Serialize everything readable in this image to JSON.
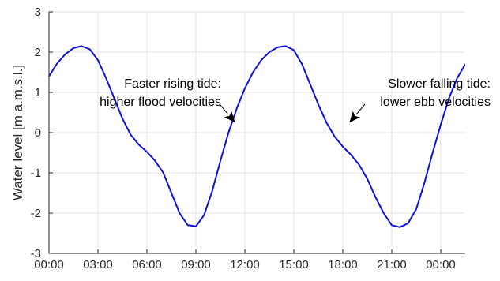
{
  "chart_data": {
    "type": "line",
    "title": "",
    "xlabel": "",
    "ylabel": "Water level [m a.m.s.l.]",
    "xlim": [
      0,
      25.5
    ],
    "ylim": [
      -3,
      3
    ],
    "grid": true,
    "x_ticks": [
      0,
      3,
      6,
      9,
      12,
      15,
      18,
      21,
      24
    ],
    "x_tick_labels": [
      "00:00",
      "03:00",
      "06:00",
      "09:00",
      "12:00",
      "15:00",
      "18:00",
      "21:00",
      "00:00"
    ],
    "y_ticks": [
      -3,
      -2,
      -1,
      0,
      1,
      2,
      3
    ],
    "y_tick_labels": [
      "-3",
      "-2",
      "-1",
      "0",
      "1",
      "2",
      "3"
    ],
    "line_color": "#1010e0",
    "series": [
      {
        "x": [
          0,
          0.5,
          1,
          1.5,
          2,
          2.5,
          3,
          3.5,
          4,
          4.5,
          5,
          5.5,
          6,
          6.5,
          7,
          7.5,
          8,
          8.5,
          9,
          9.5,
          10,
          10.5,
          11,
          11.5,
          12,
          12.5,
          13,
          13.5,
          14,
          14.5,
          15,
          15.5,
          16,
          16.5,
          17,
          17.5,
          18,
          18.5,
          19,
          19.5,
          20,
          20.5,
          21,
          21.5,
          22,
          22.5,
          23,
          23.5,
          24,
          24.5,
          25,
          25.5
        ],
        "y": [
          1.4,
          1.72,
          1.95,
          2.1,
          2.15,
          2.07,
          1.8,
          1.35,
          0.85,
          0.35,
          -0.05,
          -0.3,
          -0.48,
          -0.7,
          -1.0,
          -1.5,
          -2.0,
          -2.3,
          -2.33,
          -2.05,
          -1.45,
          -0.7,
          0.0,
          0.6,
          1.1,
          1.5,
          1.8,
          2.0,
          2.12,
          2.15,
          2.05,
          1.7,
          1.2,
          0.7,
          0.25,
          -0.1,
          -0.35,
          -0.55,
          -0.8,
          -1.15,
          -1.6,
          -2.0,
          -2.3,
          -2.35,
          -2.25,
          -1.9,
          -1.25,
          -0.5,
          0.2,
          0.85,
          1.35,
          1.7
        ]
      }
    ],
    "annotations": [
      {
        "lines": [
          "Faster rising tide:",
          "higher flood velocities"
        ],
        "arrow_to": [
          11.4,
          0.25
        ]
      },
      {
        "lines": [
          "Slower falling tide:",
          "lower ebb velocities"
        ],
        "arrow_to": [
          18.4,
          0.25
        ]
      }
    ]
  }
}
